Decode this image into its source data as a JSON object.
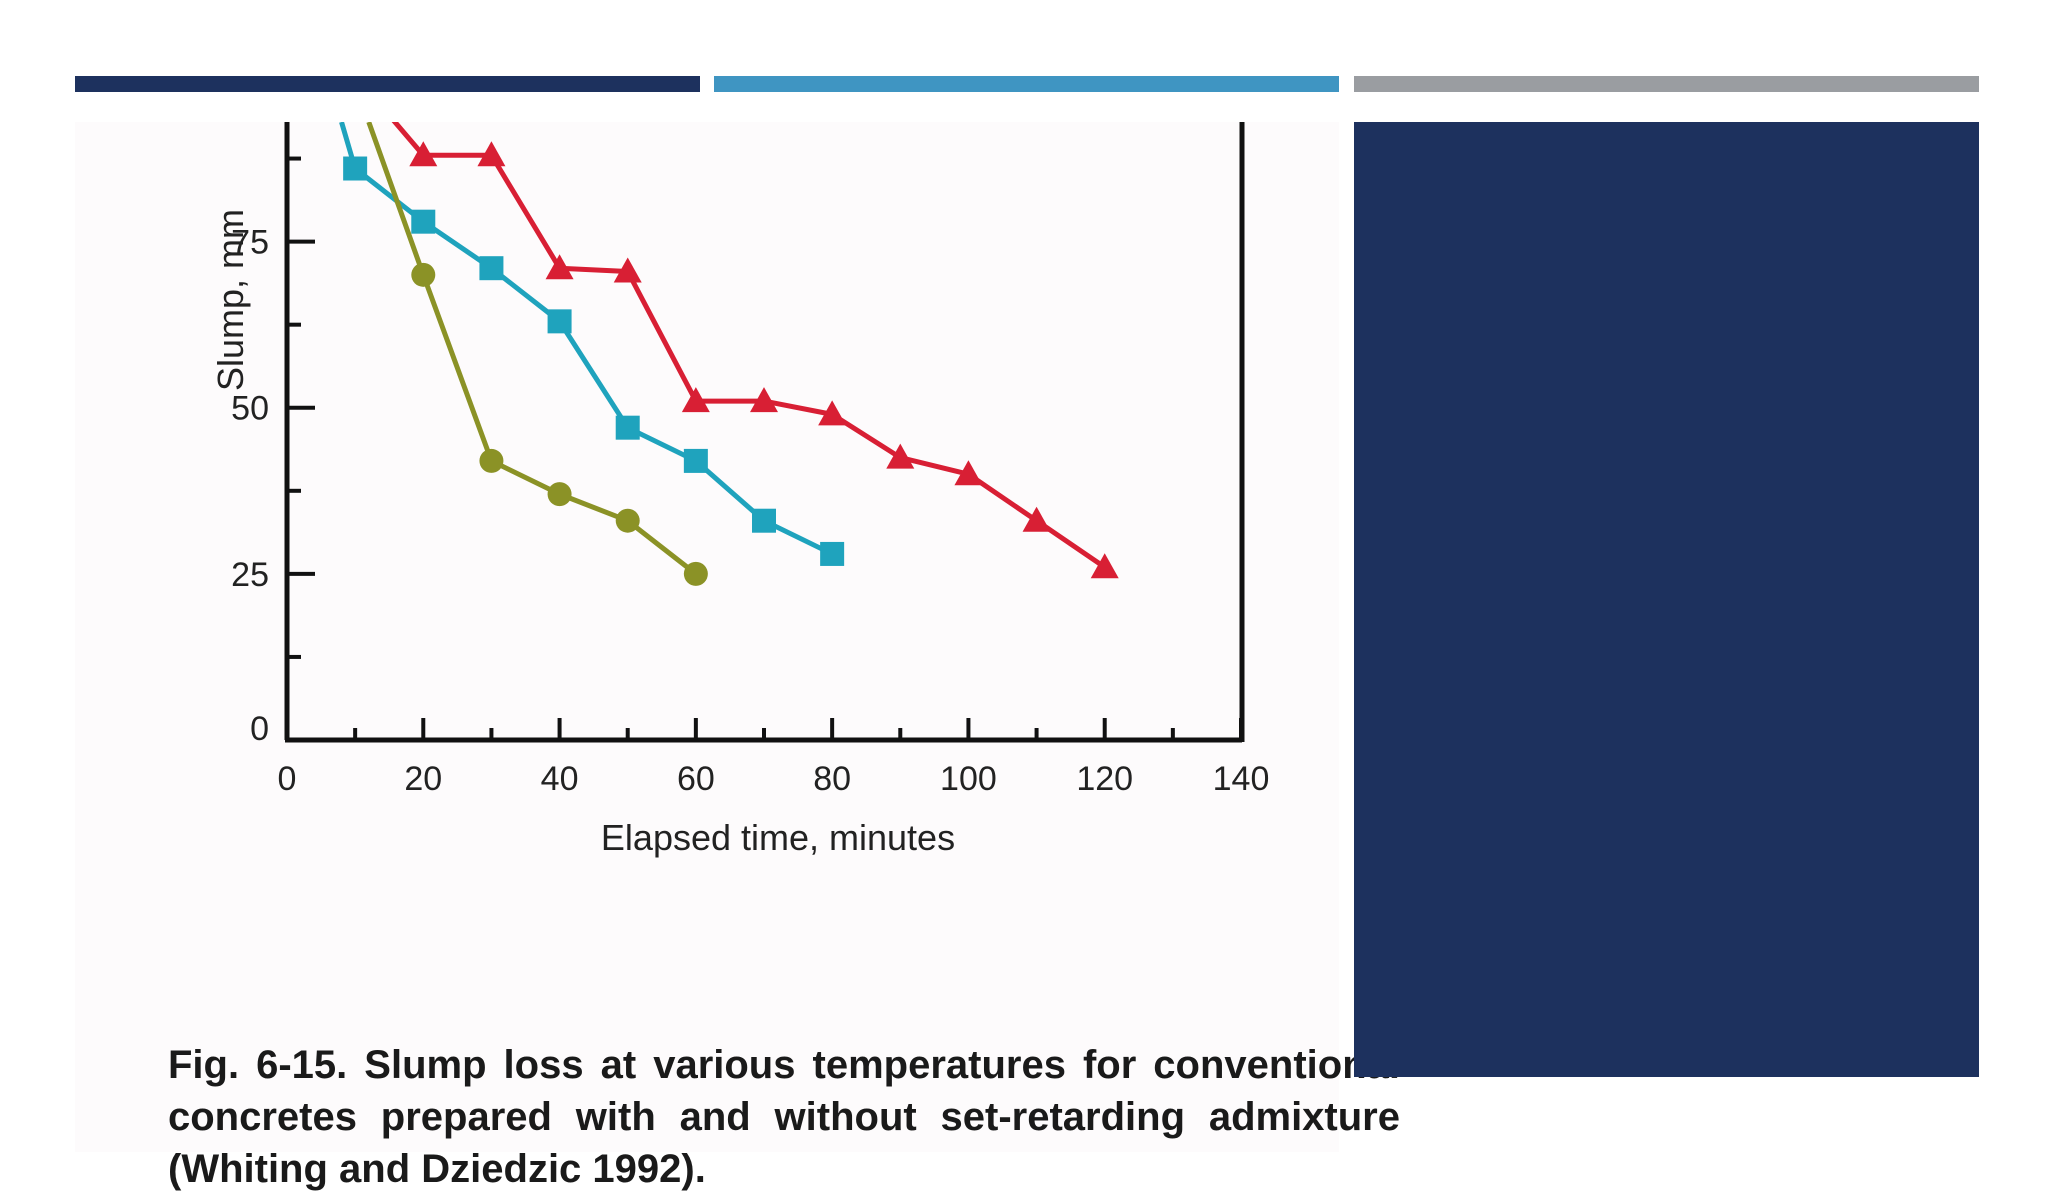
{
  "colors": {
    "bar_navy": "#1d315e",
    "bar_blue": "#3f95c2",
    "bar_gray": "#9a9da1",
    "panel_navy": "#1d315e"
  },
  "caption": "Fig. 6-15. Slump loss at various temperatures for conventional concretes prepared with and without set-retarding admixture (Whiting and Dziedzic 1992).",
  "chart_data": {
    "type": "line",
    "title": "",
    "xlabel": "Elapsed time, minutes",
    "ylabel": "Slump, mm",
    "xlim": [
      0,
      140
    ],
    "ylim": [
      0,
      93
    ],
    "x_ticks": [
      0,
      20,
      40,
      60,
      80,
      100,
      120,
      140
    ],
    "y_ticks": [
      0,
      25,
      50,
      75
    ],
    "grid": false,
    "legend": "none",
    "series": [
      {
        "color": "#d81f34",
        "marker": "triangle",
        "points": [
          [
            10,
            100
          ],
          [
            20,
            88
          ],
          [
            30,
            88
          ],
          [
            40,
            71
          ],
          [
            50,
            70.5
          ],
          [
            60,
            51
          ],
          [
            70,
            51
          ],
          [
            80,
            49
          ],
          [
            90,
            42.5
          ],
          [
            100,
            40
          ],
          [
            110,
            33
          ],
          [
            120,
            26
          ]
        ]
      },
      {
        "color": "#1fa3bd",
        "marker": "square",
        "points": [
          [
            8,
            93
          ],
          [
            10,
            86
          ],
          [
            20,
            78
          ],
          [
            30,
            71
          ],
          [
            40,
            63
          ],
          [
            50,
            47
          ],
          [
            60,
            42
          ],
          [
            70,
            33
          ],
          [
            80,
            28
          ]
        ]
      },
      {
        "color": "#8b9226",
        "marker": "circle",
        "points": [
          [
            12,
            93
          ],
          [
            20,
            70
          ],
          [
            30,
            42
          ],
          [
            40,
            37
          ],
          [
            50,
            33
          ],
          [
            60,
            25
          ]
        ]
      }
    ]
  }
}
